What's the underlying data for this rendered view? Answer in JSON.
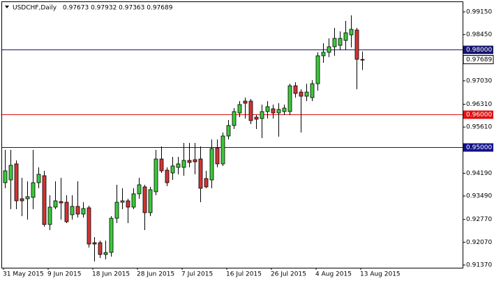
{
  "chart_data": {
    "type": "candlestick",
    "symbol": "USDCHF,Daily",
    "ohlc_text": "0.97673 0.97932 0.97363 0.97689",
    "categories": [
      "31 May 2015",
      null,
      null,
      null,
      null,
      null,
      null,
      null,
      "9 Jun 2015",
      null,
      null,
      null,
      null,
      null,
      null,
      null,
      "18 Jun 2015",
      null,
      null,
      null,
      null,
      null,
      null,
      null,
      "28 Jun 2015",
      null,
      null,
      null,
      null,
      null,
      null,
      null,
      "7 Jul 2015",
      null,
      null,
      null,
      null,
      null,
      null,
      null,
      "16 Jul 2015",
      null,
      null,
      null,
      null,
      null,
      null,
      null,
      "26 Jul 2015",
      null,
      null,
      null,
      null,
      null,
      null,
      null,
      "4 Aug 2015",
      null,
      null,
      null,
      null,
      null,
      null,
      null,
      "13 Aug 2015"
    ],
    "open": [
      0.93899,
      0.93985,
      0.94478,
      0.93406,
      0.93406,
      0.93449,
      0.93899,
      0.94114,
      0.92614,
      0.93149,
      0.93321,
      0.93299,
      0.92914,
      0.93171,
      0.92935,
      0.93128,
      0.92056,
      0.92056,
      0.91692,
      0.91756,
      0.92806,
      0.93299,
      0.93342,
      0.93149,
      0.93557,
      0.93771,
      0.92978,
      0.93621,
      0.94628,
      0.94285,
      0.94199,
      0.94371,
      0.94371,
      0.94585,
      0.94607,
      0.94628,
      0.94028,
      0.93985,
      0.94971,
      0.94478,
      0.95335,
      0.95657,
      0.96042,
      0.96407,
      0.96407,
      0.95914,
      0.95871,
      0.96085,
      0.96171,
      0.96042,
      0.96085,
      0.96085,
      0.96878,
      0.96685,
      0.96557,
      0.96514,
      0.96942,
      0.978,
      0.97907,
      0.98078,
      0.98121,
      0.98271,
      0.98443,
      0.98592,
      0.97673
    ],
    "high": [
      0.94907,
      0.94907,
      0.94585,
      0.94049,
      0.93942,
      0.94907,
      0.94371,
      0.94264,
      0.93514,
      0.93942,
      0.94049,
      0.93514,
      0.93514,
      0.93942,
      0.93299,
      0.93192,
      0.92228,
      0.92121,
      0.92121,
      0.92871,
      0.93835,
      0.93728,
      0.93406,
      0.93728,
      0.94049,
      0.93835,
      0.93771,
      0.94907,
      0.95014,
      0.94371,
      0.94692,
      0.94692,
      0.95121,
      0.95121,
      0.95121,
      0.95014,
      0.94264,
      0.95228,
      0.95228,
      0.95442,
      0.95828,
      0.96192,
      0.96407,
      0.96514,
      0.96471,
      0.95978,
      0.963,
      0.96407,
      0.963,
      0.96342,
      0.963,
      0.96942,
      0.96985,
      0.96771,
      0.96942,
      0.9705,
      0.97907,
      0.98185,
      0.98335,
      0.98657,
      0.9855,
      0.98871,
      0.99043,
      0.98657,
      0.97932
    ],
    "low": [
      0.93728,
      0.93085,
      0.93085,
      0.92871,
      0.92764,
      0.93085,
      0.93728,
      0.92549,
      0.92442,
      0.93085,
      0.92764,
      0.92656,
      0.92764,
      0.92828,
      0.92828,
      0.91906,
      0.91478,
      0.91585,
      0.91542,
      0.91628,
      0.92656,
      0.93085,
      0.92656,
      0.93085,
      0.93406,
      0.92442,
      0.92871,
      0.93514,
      0.94199,
      0.93792,
      0.93985,
      0.94157,
      0.94114,
      0.94371,
      0.94157,
      0.93299,
      0.93728,
      0.93728,
      0.94371,
      0.94414,
      0.95228,
      0.95549,
      0.95914,
      0.95871,
      0.957,
      0.95549,
      0.95271,
      0.95871,
      0.95871,
      0.95314,
      0.95978,
      0.95978,
      0.96514,
      0.95442,
      0.96407,
      0.96407,
      0.96728,
      0.97585,
      0.97757,
      0.978,
      0.97971,
      0.97971,
      0.98057,
      0.96771,
      0.97363
    ],
    "close": [
      0.94264,
      0.94435,
      0.93342,
      0.93342,
      0.93471,
      0.93899,
      0.94157,
      0.92614,
      0.93149,
      0.93342,
      0.93278,
      0.92699,
      0.93171,
      0.92935,
      0.93106,
      0.92014,
      0.92014,
      0.91692,
      0.91756,
      0.92806,
      0.93299,
      0.93342,
      0.93149,
      0.93557,
      0.93835,
      0.92978,
      0.93685,
      0.94628,
      0.94264,
      0.93899,
      0.94414,
      0.94478,
      0.94585,
      0.94521,
      0.94542,
      0.93728,
      0.93771,
      0.94949,
      0.94478,
      0.95335,
      0.95657,
      0.96085,
      0.963,
      0.96342,
      0.95807,
      0.9585,
      0.96085,
      0.96235,
      0.96042,
      0.9615,
      0.96192,
      0.96878,
      0.96642,
      0.96557,
      0.96685,
      0.96942,
      0.978,
      0.97907,
      0.98078,
      0.98335,
      0.98335,
      0.98507,
      0.98614,
      0.97692,
      0.97689
    ],
    "up_color": "#3dc83d",
    "down_color": "#d23434",
    "ylim": [
      0.91285,
      0.9945
    ],
    "yticks": [
      {
        "value": 0.9915,
        "label": "0.99150"
      },
      {
        "value": 0.9845,
        "label": "0.98450"
      },
      {
        "value": 0.9703,
        "label": "0.97030"
      },
      {
        "value": 0.9631,
        "label": "0.96310"
      },
      {
        "value": 0.9561,
        "label": "0.95610"
      },
      {
        "value": 0.9419,
        "label": "0.94190"
      },
      {
        "value": 0.9349,
        "label": "0.93490"
      },
      {
        "value": 0.9277,
        "label": "0.92770"
      },
      {
        "value": 0.9207,
        "label": "0.92070"
      },
      {
        "value": 0.9137,
        "label": "0.91370"
      }
    ],
    "levels": [
      {
        "value": 0.98,
        "label": "0.98000",
        "color": "#14146e"
      },
      {
        "value": 0.96,
        "label": "0.96000",
        "color": "#e01010"
      },
      {
        "value": 0.95,
        "label": "0.95000",
        "color": "#10108a"
      }
    ],
    "last_price": {
      "value": 0.97689,
      "label": "0.97689"
    }
  }
}
